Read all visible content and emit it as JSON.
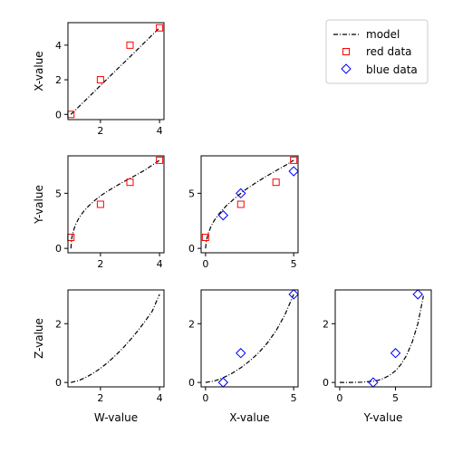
{
  "chart_data": {
    "type": "scatter",
    "layout": "lower-triangle scatter matrix, 3x3",
    "legend": {
      "placement": "top-right",
      "entries": [
        {
          "label": "model",
          "style": "dash-dot line",
          "color": "#000000"
        },
        {
          "label": "red data",
          "style": "square marker",
          "color": "#ff0000"
        },
        {
          "label": "blue data",
          "style": "diamond marker",
          "color": "#0000ff"
        }
      ]
    },
    "colors": {
      "red": "#ff0000",
      "blue": "#0000ff",
      "model": "#000000"
    },
    "panels": [
      {
        "id": "x-vs-w",
        "xlabel": "",
        "ylabel": "X-value",
        "xlim": [
          0.9,
          4.15
        ],
        "ylim": [
          -0.3,
          5.3
        ],
        "xticks": [
          {
            "v": 2,
            "label": "2"
          },
          {
            "v": 4,
            "label": "4"
          }
        ],
        "yticks": [
          {
            "v": 0,
            "label": "0"
          },
          {
            "v": 2,
            "label": "2"
          },
          {
            "v": 4,
            "label": "4"
          }
        ],
        "model": {
          "x": [
            1.0,
            1.5,
            2.0,
            2.5,
            3.0,
            3.5,
            4.0
          ],
          "y": [
            0.0,
            0.83,
            1.67,
            2.5,
            3.33,
            4.17,
            5.0
          ]
        },
        "red": {
          "x": [
            1,
            2,
            3,
            4
          ],
          "y": [
            0,
            2,
            4,
            5
          ]
        },
        "blue": {
          "x": [],
          "y": []
        }
      },
      {
        "id": "y-vs-w",
        "xlabel": "",
        "ylabel": "Y-value",
        "xlim": [
          0.9,
          4.15
        ],
        "ylim": [
          -0.4,
          8.4
        ],
        "xticks": [
          {
            "v": 2,
            "label": "2"
          },
          {
            "v": 4,
            "label": "4"
          }
        ],
        "yticks": [
          {
            "v": 0,
            "label": "0"
          },
          {
            "v": 5,
            "label": "5"
          }
        ],
        "model": {
          "x": [
            1.0,
            1.03,
            1.08,
            1.15,
            1.25,
            1.4,
            1.6,
            1.85,
            2.1,
            2.4,
            2.75,
            3.1,
            3.5,
            4.0
          ],
          "y": [
            0.0,
            0.95,
            1.55,
            2.1,
            2.65,
            3.25,
            3.85,
            4.45,
            4.95,
            5.45,
            6.0,
            6.5,
            7.1,
            8.0
          ]
        },
        "red": {
          "x": [
            1,
            2,
            3,
            4
          ],
          "y": [
            1,
            4,
            6,
            8
          ]
        },
        "blue": {
          "x": [],
          "y": []
        }
      },
      {
        "id": "y-vs-x",
        "xlabel": "",
        "ylabel": "",
        "xlim": [
          -0.25,
          5.25
        ],
        "ylim": [
          -0.4,
          8.4
        ],
        "xticks": [
          {
            "v": 0,
            "label": "0"
          },
          {
            "v": 5,
            "label": "5"
          }
        ],
        "yticks": [
          {
            "v": 0,
            "label": "0"
          },
          {
            "v": 5,
            "label": "5"
          }
        ],
        "model": {
          "x": [
            0.0,
            0.05,
            0.15,
            0.3,
            0.5,
            0.8,
            1.2,
            1.7,
            2.2,
            2.8,
            3.4,
            4.0,
            4.6,
            5.0
          ],
          "y": [
            0.0,
            0.7,
            1.35,
            1.95,
            2.55,
            3.2,
            3.9,
            4.6,
            5.25,
            5.9,
            6.5,
            7.05,
            7.6,
            8.0
          ]
        },
        "red": {
          "x": [
            0,
            2,
            4,
            5
          ],
          "y": [
            1,
            4,
            6,
            8
          ]
        },
        "blue": {
          "x": [
            1,
            2,
            5
          ],
          "y": [
            3,
            5,
            7
          ]
        }
      },
      {
        "id": "z-vs-w",
        "xlabel": "W-value",
        "ylabel": "Z-value",
        "xlim": [
          0.9,
          4.15
        ],
        "ylim": [
          -0.15,
          3.15
        ],
        "xticks": [
          {
            "v": 2,
            "label": "2"
          },
          {
            "v": 4,
            "label": "4"
          }
        ],
        "yticks": [
          {
            "v": 0,
            "label": "0"
          },
          {
            "v": 2,
            "label": "2"
          }
        ],
        "model": {
          "x": [
            1.0,
            1.25,
            1.5,
            1.75,
            2.0,
            2.25,
            2.5,
            2.75,
            3.0,
            3.25,
            3.5,
            3.75,
            4.0
          ],
          "y": [
            0.0,
            0.06,
            0.17,
            0.31,
            0.48,
            0.68,
            0.91,
            1.16,
            1.44,
            1.74,
            2.07,
            2.42,
            3.0
          ]
        },
        "red": {
          "x": [],
          "y": []
        },
        "blue": {
          "x": [],
          "y": []
        }
      },
      {
        "id": "z-vs-x",
        "xlabel": "X-value",
        "ylabel": "",
        "xlim": [
          -0.25,
          5.25
        ],
        "ylim": [
          -0.15,
          3.15
        ],
        "xticks": [
          {
            "v": 0,
            "label": "0"
          },
          {
            "v": 5,
            "label": "5"
          }
        ],
        "yticks": [
          {
            "v": 0,
            "label": "0"
          },
          {
            "v": 2,
            "label": "2"
          }
        ],
        "model": {
          "x": [
            0.0,
            0.5,
            1.0,
            1.5,
            2.0,
            2.5,
            3.0,
            3.5,
            4.0,
            4.5,
            5.0
          ],
          "y": [
            0.0,
            0.05,
            0.16,
            0.31,
            0.5,
            0.73,
            1.0,
            1.34,
            1.76,
            2.3,
            3.0
          ]
        },
        "red": {
          "x": [],
          "y": []
        },
        "blue": {
          "x": [
            1,
            2,
            5
          ],
          "y": [
            0,
            1,
            3
          ]
        }
      },
      {
        "id": "z-vs-y",
        "xlabel": "Y-value",
        "ylabel": "",
        "xlim": [
          -0.4,
          8.2
        ],
        "ylim": [
          -0.15,
          3.15
        ],
        "xticks": [
          {
            "v": 0,
            "label": "0"
          },
          {
            "v": 5,
            "label": "5"
          }
        ],
        "yticks": [
          {
            "v": 0,
            "label": "0"
          },
          {
            "v": 2,
            "label": "2"
          }
        ],
        "model": {
          "x": [
            0.0,
            1.0,
            2.0,
            3.0,
            3.5,
            4.0,
            4.5,
            5.0,
            5.5,
            6.0,
            6.5,
            7.0,
            7.5
          ],
          "y": [
            0.0,
            0.0,
            0.01,
            0.04,
            0.08,
            0.15,
            0.25,
            0.4,
            0.62,
            0.93,
            1.38,
            2.0,
            2.95
          ]
        },
        "red": {
          "x": [],
          "y": []
        },
        "blue": {
          "x": [
            3,
            5,
            7
          ],
          "y": [
            0,
            1,
            3
          ]
        }
      }
    ]
  }
}
